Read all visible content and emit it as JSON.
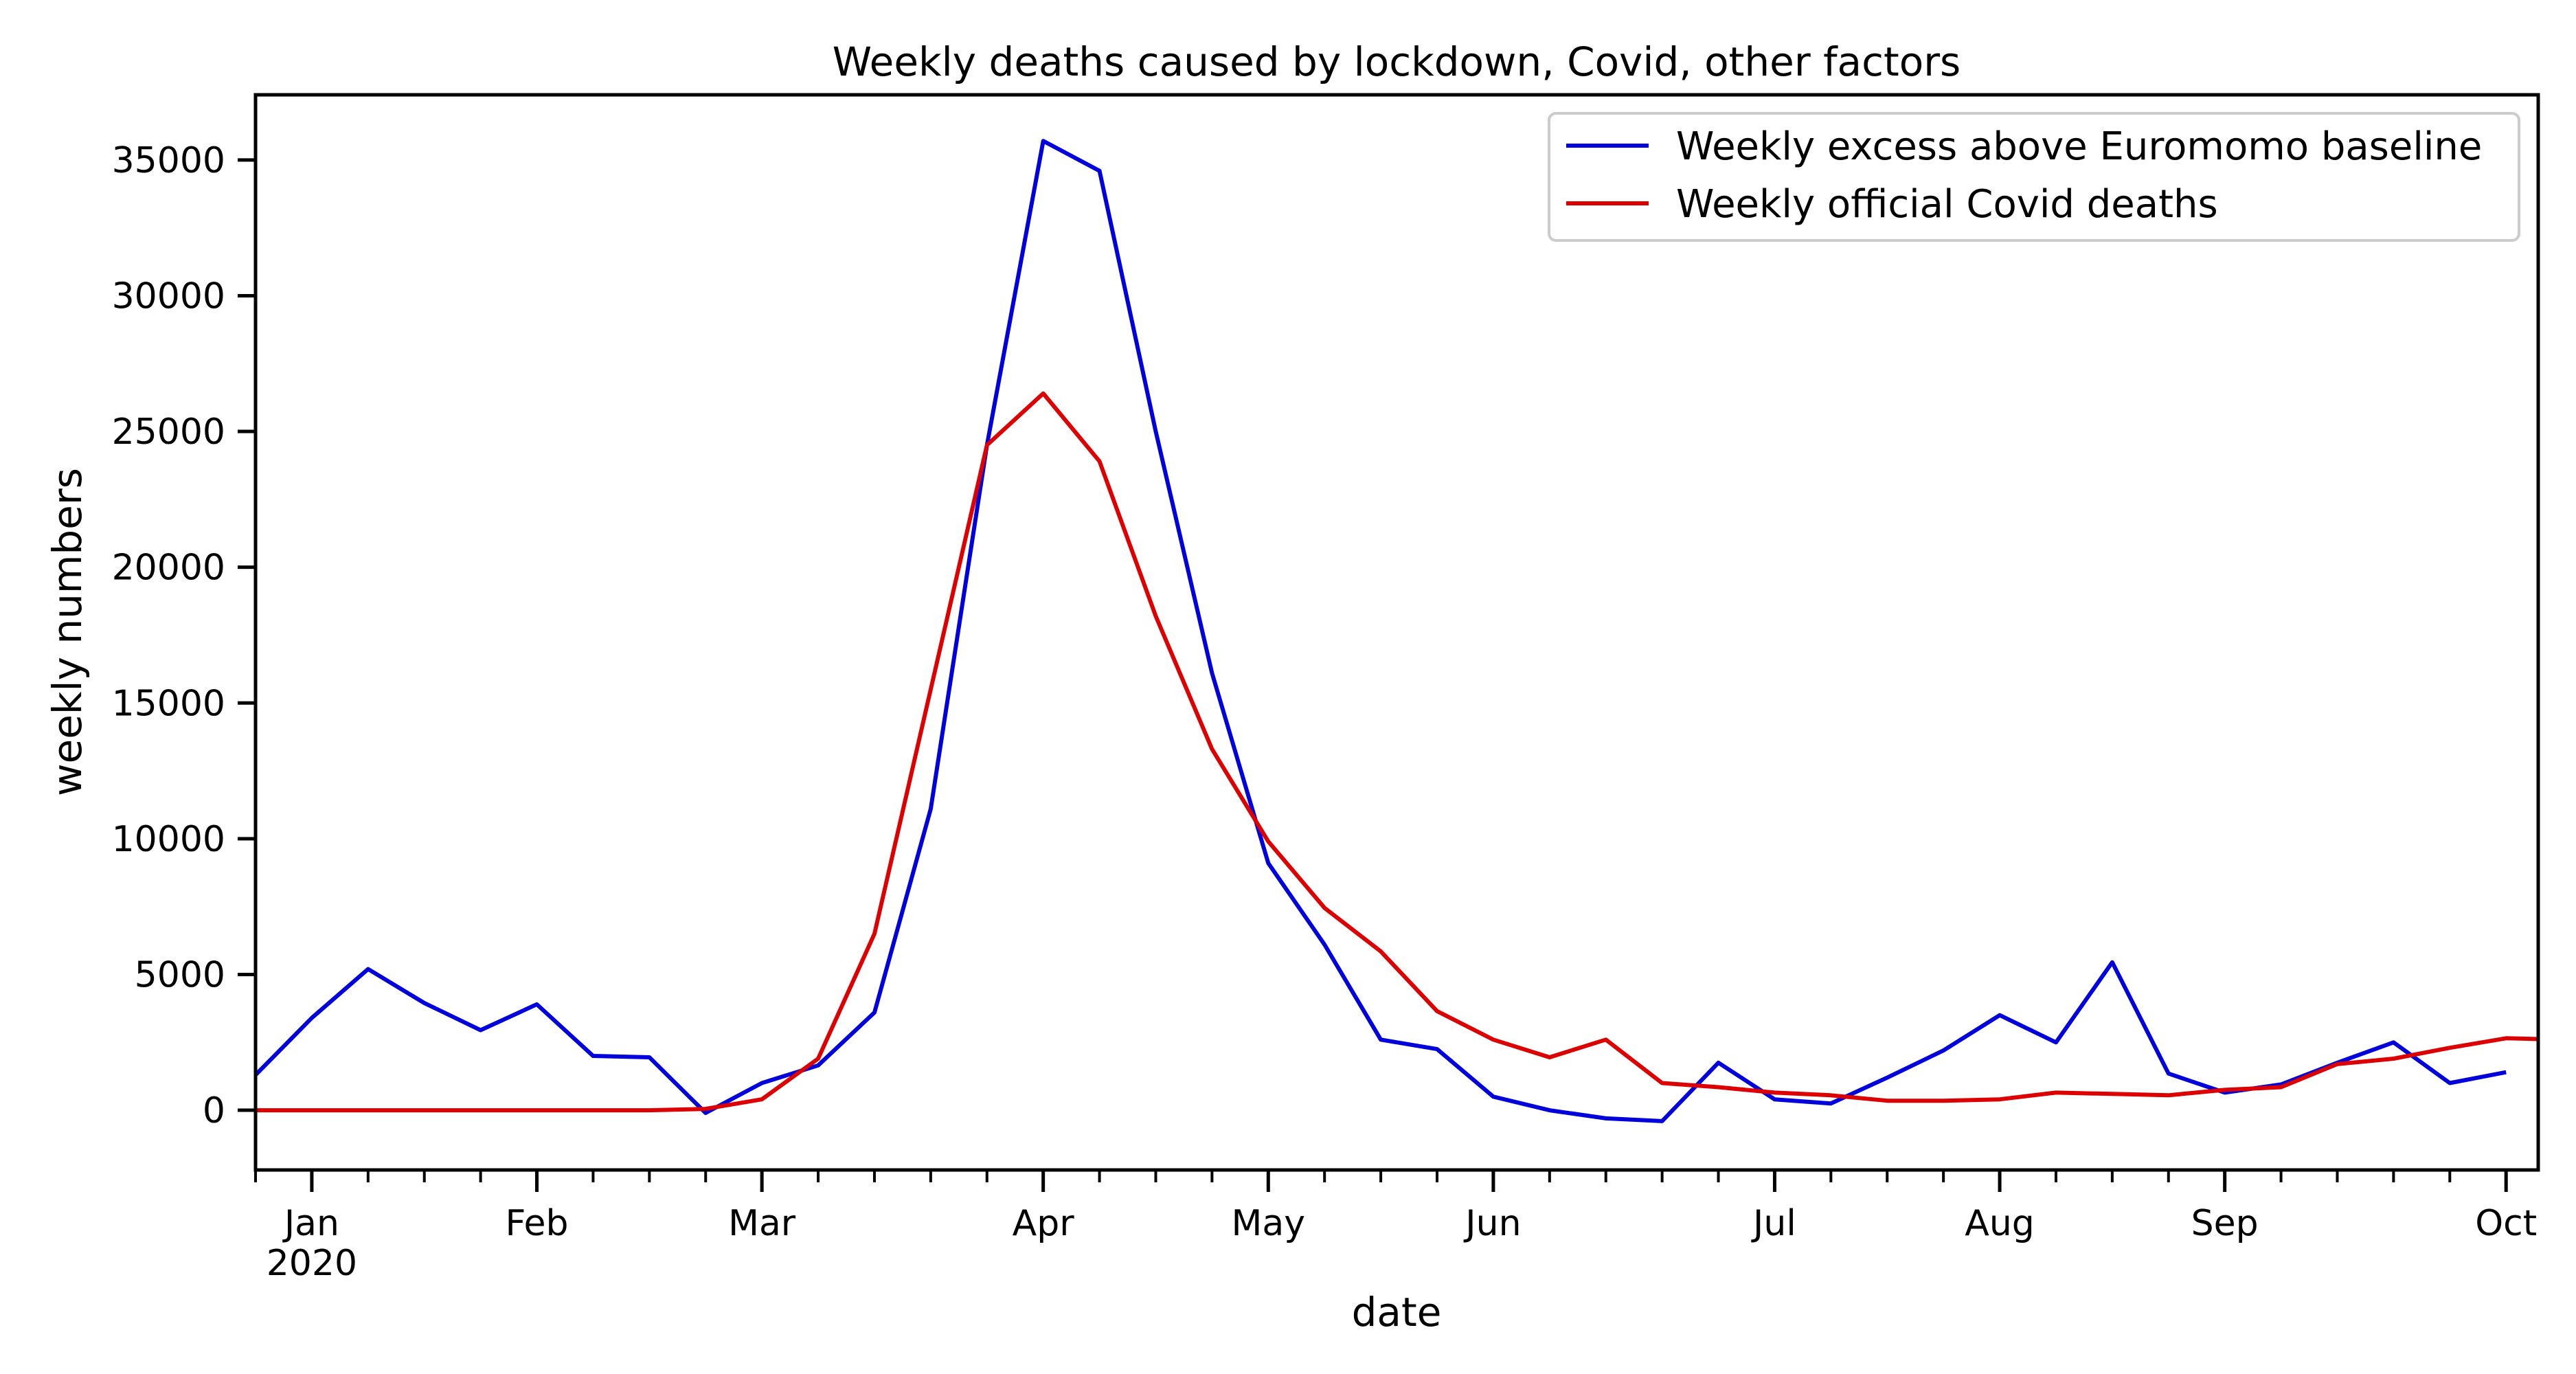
{
  "chart_data": {
    "type": "line",
    "title": "Weekly deaths caused by lockdown, Covid, other factors",
    "xlabel": "date",
    "ylabel": "weekly numbers",
    "xlim": [
      "2019-12-27",
      "2020-10-06"
    ],
    "ylim": [
      -2200,
      37400
    ],
    "y_ticks": [
      0,
      5000,
      10000,
      15000,
      20000,
      25000,
      30000,
      35000
    ],
    "x_major_ticks": [
      {
        "date": "2020-01-03",
        "label": "Jan",
        "sublabel": "2020"
      },
      {
        "date": "2020-01-31",
        "label": "Feb"
      },
      {
        "date": "2020-02-28",
        "label": "Mar"
      },
      {
        "date": "2020-04-03",
        "label": "Apr"
      },
      {
        "date": "2020-05-01",
        "label": "May"
      },
      {
        "date": "2020-05-29",
        "label": "Jun"
      },
      {
        "date": "2020-07-03",
        "label": "Jul"
      },
      {
        "date": "2020-07-31",
        "label": "Aug"
      },
      {
        "date": "2020-08-28",
        "label": "Sep"
      },
      {
        "date": "2020-10-02",
        "label": "Oct"
      }
    ],
    "x_minor_ticks": [
      "2019-12-27",
      "2020-01-10",
      "2020-01-17",
      "2020-01-24",
      "2020-02-07",
      "2020-02-14",
      "2020-02-21",
      "2020-03-06",
      "2020-03-13",
      "2020-03-20",
      "2020-03-27",
      "2020-04-10",
      "2020-04-17",
      "2020-04-24",
      "2020-05-08",
      "2020-05-15",
      "2020-05-22",
      "2020-06-05",
      "2020-06-12",
      "2020-06-19",
      "2020-06-26",
      "2020-07-10",
      "2020-07-17",
      "2020-07-24",
      "2020-08-07",
      "2020-08-14",
      "2020-08-21",
      "2020-09-04",
      "2020-09-11",
      "2020-09-18",
      "2020-09-25"
    ],
    "grid": false,
    "legend_position": "top-right",
    "series": [
      {
        "name": "Weekly excess above Euromomo baseline",
        "color": "#0000dd",
        "points": [
          [
            "2019-12-27",
            1300
          ],
          [
            "2020-01-03",
            3400
          ],
          [
            "2020-01-10",
            5200
          ],
          [
            "2020-01-17",
            3950
          ],
          [
            "2020-01-24",
            2950
          ],
          [
            "2020-01-31",
            3900
          ],
          [
            "2020-02-07",
            2000
          ],
          [
            "2020-02-14",
            1950
          ],
          [
            "2020-02-21",
            -100
          ],
          [
            "2020-02-28",
            1000
          ],
          [
            "2020-03-06",
            1650
          ],
          [
            "2020-03-13",
            3600
          ],
          [
            "2020-03-20",
            11100
          ],
          [
            "2020-03-27",
            24500
          ],
          [
            "2020-04-03",
            35700
          ],
          [
            "2020-04-10",
            34600
          ],
          [
            "2020-04-17",
            25000
          ],
          [
            "2020-04-24",
            16100
          ],
          [
            "2020-05-01",
            9100
          ],
          [
            "2020-05-08",
            6100
          ],
          [
            "2020-05-15",
            2600
          ],
          [
            "2020-05-22",
            2250
          ],
          [
            "2020-05-29",
            500
          ],
          [
            "2020-06-05",
            0
          ],
          [
            "2020-06-12",
            -300
          ],
          [
            "2020-06-19",
            -400
          ],
          [
            "2020-06-26",
            1750
          ],
          [
            "2020-07-03",
            400
          ],
          [
            "2020-07-10",
            250
          ],
          [
            "2020-07-17",
            1200
          ],
          [
            "2020-07-24",
            2200
          ],
          [
            "2020-07-31",
            3500
          ],
          [
            "2020-08-07",
            2500
          ],
          [
            "2020-08-14",
            5450
          ],
          [
            "2020-08-21",
            1350
          ],
          [
            "2020-08-28",
            650
          ],
          [
            "2020-09-04",
            950
          ],
          [
            "2020-09-11",
            1750
          ],
          [
            "2020-09-18",
            2500
          ],
          [
            "2020-09-25",
            1000
          ],
          [
            "2020-10-02",
            1400
          ]
        ]
      },
      {
        "name": "Weekly official Covid deaths",
        "color": "#dd0000",
        "points": [
          [
            "2019-12-27",
            0
          ],
          [
            "2020-01-03",
            0
          ],
          [
            "2020-01-10",
            0
          ],
          [
            "2020-01-17",
            0
          ],
          [
            "2020-01-24",
            0
          ],
          [
            "2020-01-31",
            0
          ],
          [
            "2020-02-07",
            0
          ],
          [
            "2020-02-14",
            0
          ],
          [
            "2020-02-21",
            50
          ],
          [
            "2020-02-28",
            400
          ],
          [
            "2020-03-06",
            1900
          ],
          [
            "2020-03-13",
            6500
          ],
          [
            "2020-03-20",
            15500
          ],
          [
            "2020-03-27",
            24500
          ],
          [
            "2020-04-03",
            26400
          ],
          [
            "2020-04-10",
            23900
          ],
          [
            "2020-04-17",
            18200
          ],
          [
            "2020-04-24",
            13300
          ],
          [
            "2020-05-01",
            9900
          ],
          [
            "2020-05-08",
            7450
          ],
          [
            "2020-05-15",
            5850
          ],
          [
            "2020-05-22",
            3650
          ],
          [
            "2020-05-29",
            2600
          ],
          [
            "2020-06-05",
            1950
          ],
          [
            "2020-06-12",
            2600
          ],
          [
            "2020-06-19",
            1000
          ],
          [
            "2020-06-26",
            850
          ],
          [
            "2020-07-03",
            650
          ],
          [
            "2020-07-10",
            550
          ],
          [
            "2020-07-17",
            350
          ],
          [
            "2020-07-24",
            350
          ],
          [
            "2020-07-31",
            400
          ],
          [
            "2020-08-07",
            650
          ],
          [
            "2020-08-14",
            600
          ],
          [
            "2020-08-21",
            550
          ],
          [
            "2020-08-28",
            750
          ],
          [
            "2020-09-04",
            850
          ],
          [
            "2020-09-11",
            1700
          ],
          [
            "2020-09-18",
            1900
          ],
          [
            "2020-09-25",
            2300
          ],
          [
            "2020-10-02",
            2650
          ],
          [
            "2020-10-09",
            2600
          ]
        ]
      }
    ]
  }
}
